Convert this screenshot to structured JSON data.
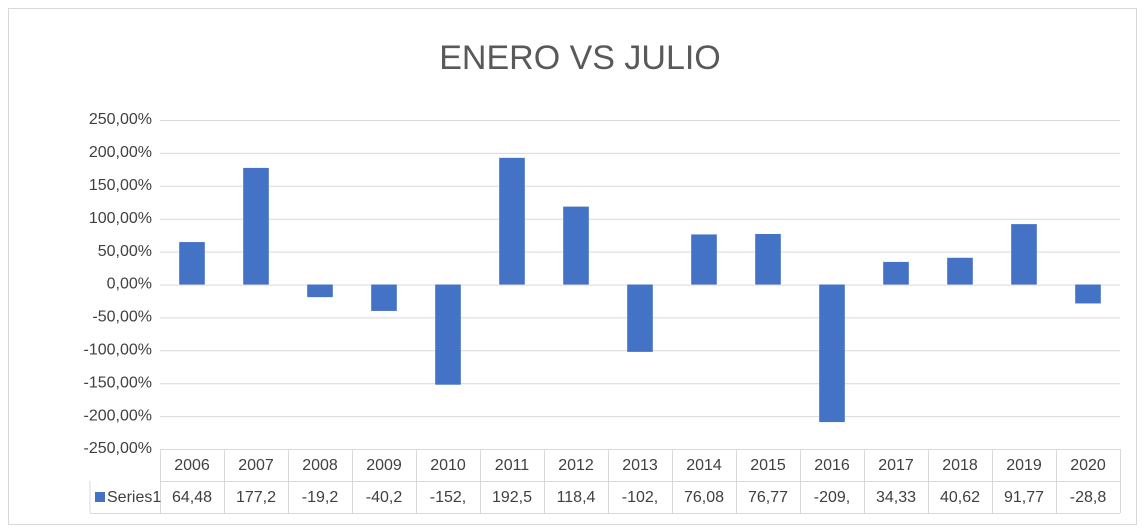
{
  "chart_data": {
    "type": "bar",
    "title": "ENERO VS JULIO",
    "categories": [
      "2006",
      "2007",
      "2008",
      "2009",
      "2010",
      "2011",
      "2012",
      "2013",
      "2014",
      "2015",
      "2016",
      "2017",
      "2018",
      "2019",
      "2020"
    ],
    "series": [
      {
        "name": "Series1",
        "color": "#4472c4",
        "values": [
          64.48,
          177.2,
          -19.2,
          -40.2,
          -152.3,
          192.5,
          118.4,
          -102.4,
          76.08,
          76.77,
          -209.1,
          34.33,
          40.62,
          91.77,
          -28.8
        ],
        "value_labels": [
          "64,48",
          "177,2",
          "-19,2",
          "-40,2",
          "-152,",
          "192,5",
          "118,4",
          "-102,",
          "76,08",
          "76,77",
          "-209,",
          "34,33",
          "40,62",
          "91,77",
          "-28,8"
        ]
      }
    ],
    "ylim": [
      -250,
      250
    ],
    "yticks": [
      {
        "value": -250,
        "label": "-250,00%"
      },
      {
        "value": -200,
        "label": "-200,00%"
      },
      {
        "value": -150,
        "label": "-150,00%"
      },
      {
        "value": -100,
        "label": "-100,00%"
      },
      {
        "value": -50,
        "label": "-50,00%"
      },
      {
        "value": 0,
        "label": "0,00%"
      },
      {
        "value": 50,
        "label": "50,00%"
      },
      {
        "value": 100,
        "label": "100,00%"
      },
      {
        "value": 150,
        "label": "150,00%"
      },
      {
        "value": 200,
        "label": "200,00%"
      },
      {
        "value": 250,
        "label": "250,00%"
      }
    ],
    "grid": true
  }
}
